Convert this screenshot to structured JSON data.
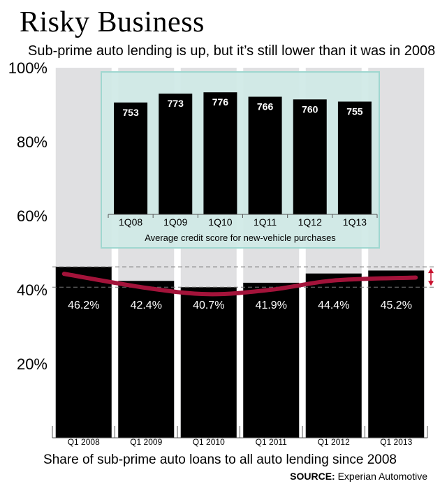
{
  "title": "Risky Business",
  "subtitle": "Sub-prime auto lending is up, but it’s still lower than it was in 2008",
  "source_label": "SOURCE:",
  "source_name": "Experian Automotive",
  "colors": {
    "bar": "#000000",
    "bar_background": "#e0e0e2",
    "inset_background": "#cfe9e6",
    "inset_border": "#9fd7d0",
    "trend_line": "#a3133a",
    "range_arrow": "#c8102e",
    "dashed_line": "#777777"
  },
  "chart_data": [
    {
      "type": "bar",
      "title": "Share of sub-prime auto loans to all auto lending since 2008",
      "xlabel": "Share of sub-prime auto loans to all auto lending since 2008",
      "ylabel": "",
      "ylim": [
        0,
        100
      ],
      "yticks": [
        20,
        40,
        60,
        80,
        100
      ],
      "ytick_labels": [
        "20%",
        "40%",
        "60%",
        "80%",
        "100%"
      ],
      "categories": [
        "Q1 2008",
        "Q1 2009",
        "Q1 2010",
        "Q1 2011",
        "Q1 2012",
        "Q1 2013"
      ],
      "values": [
        46.2,
        42.4,
        40.7,
        41.9,
        44.4,
        45.2
      ],
      "value_labels": [
        "46.2%",
        "42.4%",
        "40.7%",
        "41.9%",
        "44.4%",
        "45.2%"
      ],
      "trend_line": true,
      "reference_lines": [
        46.2,
        40.7
      ]
    },
    {
      "type": "bar",
      "title": "Average credit score for new-vehicle purchases",
      "categories": [
        "1Q08",
        "1Q09",
        "1Q10",
        "1Q11",
        "1Q12",
        "1Q13"
      ],
      "values": [
        753,
        773,
        776,
        766,
        760,
        755
      ],
      "value_labels": [
        "753",
        "773",
        "776",
        "766",
        "760",
        "755"
      ],
      "ylim": [
        500,
        800
      ]
    }
  ]
}
